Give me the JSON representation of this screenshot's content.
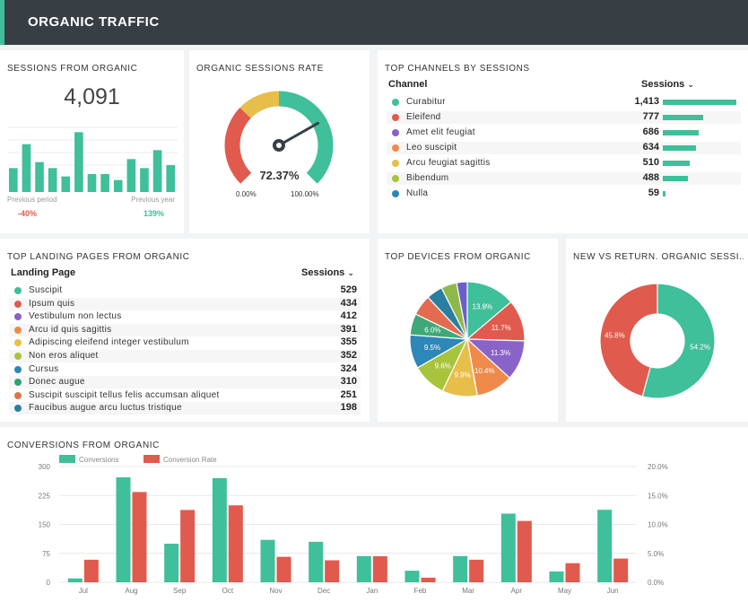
{
  "header": {
    "title": "ORGANIC TRAFFIC"
  },
  "sessions": {
    "title": "SESSIONS FROM ORGANIC",
    "value": "4,091",
    "bars": [
      4,
      8,
      5,
      4,
      2.6,
      10,
      3,
      3,
      2,
      5.5,
      4,
      7,
      4.5
    ],
    "prev_period_label": "Previous period",
    "prev_period_change": "-40%",
    "prev_year_label": "Previous year",
    "prev_year_change": "139%"
  },
  "rate": {
    "title": "ORGANIC SESSIONS RATE",
    "value": "72.37%",
    "percent": 72.37,
    "min_label": "0.00%",
    "max_label": "100.00%"
  },
  "channels": {
    "title": "TOP CHANNELS BY SESSIONS",
    "col_channel": "Channel",
    "col_sessions": "Sessions",
    "sort_icon": "chevron-down-icon",
    "max": 1413,
    "rows": [
      {
        "label": "Curabitur",
        "value": "1,413",
        "num": 1413,
        "color": "#3fbf9a"
      },
      {
        "label": "Eleifend",
        "value": "777",
        "num": 777,
        "color": "#e05a4e"
      },
      {
        "label": "Amet elit feugiat",
        "value": "686",
        "num": 686,
        "color": "#8a63c9"
      },
      {
        "label": "Leo suscipit",
        "value": "634",
        "num": 634,
        "color": "#ef8a4b"
      },
      {
        "label": "Arcu feugiat sagittis",
        "value": "510",
        "num": 510,
        "color": "#e8be4a"
      },
      {
        "label": "Bibendum",
        "value": "488",
        "num": 488,
        "color": "#a8c43c"
      },
      {
        "label": "Nulla",
        "value": "59",
        "num": 59,
        "color": "#2d87b8"
      }
    ]
  },
  "landing": {
    "title": "TOP LANDING PAGES FROM ORGANIC",
    "col_page": "Landing Page",
    "col_sessions": "Sessions",
    "rows": [
      {
        "label": "Suscipit",
        "value": "529",
        "color": "#3fbf9a"
      },
      {
        "label": "Ipsum quis",
        "value": "434",
        "color": "#e05a4e"
      },
      {
        "label": "Vestibulum non lectus",
        "value": "412",
        "color": "#8a63c9"
      },
      {
        "label": "Arcu id quis sagittis",
        "value": "391",
        "color": "#ef8a4b"
      },
      {
        "label": "Adipiscing eleifend integer vestibulum",
        "value": "355",
        "color": "#e8be4a"
      },
      {
        "label": "Non eros aliquet",
        "value": "352",
        "color": "#a8c43c"
      },
      {
        "label": "Cursus",
        "value": "324",
        "color": "#2d87b8"
      },
      {
        "label": "Donec augue",
        "value": "310",
        "color": "#2fa36f"
      },
      {
        "label": "Suscipit suscipit tellus felis accumsan aliquet",
        "value": "251",
        "color": "#e0734e"
      },
      {
        "label": "Faucibus augue arcu luctus tristique",
        "value": "198",
        "color": "#2a7fa0"
      }
    ]
  },
  "devices": {
    "title": "TOP DEVICES FROM ORGANIC",
    "slices": [
      {
        "value": 13.8,
        "label": "13.8%",
        "color": "#3fbf9a"
      },
      {
        "value": 11.7,
        "label": "11.7%",
        "color": "#e05a4e"
      },
      {
        "value": 11.3,
        "label": "11.3%",
        "color": "#8a63c9"
      },
      {
        "value": 10.4,
        "label": "10.4%",
        "color": "#ef8a4b"
      },
      {
        "value": 9.9,
        "label": "9.9%",
        "color": "#e8be4a"
      },
      {
        "value": 9.6,
        "label": "9.6%",
        "color": "#a8c43c"
      },
      {
        "value": 9.5,
        "label": "9.5%",
        "color": "#2d87b8"
      },
      {
        "value": 6.0,
        "label": "6.0%",
        "color": "#3fa876"
      },
      {
        "value": 5.8,
        "label": "",
        "color": "#e36b4f"
      },
      {
        "value": 4.6,
        "label": "",
        "color": "#2a7fa0"
      },
      {
        "value": 4.4,
        "label": "",
        "color": "#8fb84a"
      },
      {
        "value": 3.0,
        "label": "",
        "color": "#6a5fc9"
      }
    ]
  },
  "newreturn": {
    "title": "NEW VS RETURN. ORGANIC SESSI...",
    "slices": [
      {
        "value": 54.2,
        "label": "54.2%",
        "color": "#3fbf9a"
      },
      {
        "value": 45.8,
        "label": "45.8%",
        "color": "#e05a4e"
      }
    ]
  },
  "chart_data": {
    "type": "bar",
    "title": "CONVERSIONS FROM ORGANIC",
    "categories": [
      "Jul",
      "Aug",
      "Sep",
      "Oct",
      "Nov",
      "Dec",
      "Jan",
      "Feb",
      "Mar",
      "Apr",
      "May",
      "Jun"
    ],
    "series": [
      {
        "name": "Conversions",
        "axis": "left",
        "color": "#3fbf9a",
        "values": [
          10,
          272,
          100,
          270,
          110,
          105,
          68,
          30,
          68,
          178,
          28,
          188
        ]
      },
      {
        "name": "Conversion Rate",
        "axis": "right",
        "color": "#e05a4e",
        "values": [
          3.9,
          15.6,
          12.5,
          13.3,
          4.4,
          3.8,
          4.5,
          0.8,
          3.9,
          10.6,
          3.3,
          4.1
        ]
      }
    ],
    "y_left": {
      "ticks": [
        "0",
        "75",
        "150",
        "225",
        "300"
      ],
      "ylim": [
        0,
        300
      ]
    },
    "y_right": {
      "ticks": [
        "0.0%",
        "5.0%",
        "10.0%",
        "15.0%",
        "20.0%"
      ],
      "ylim": [
        0,
        20
      ]
    },
    "legend": "top-left",
    "grid": true
  }
}
